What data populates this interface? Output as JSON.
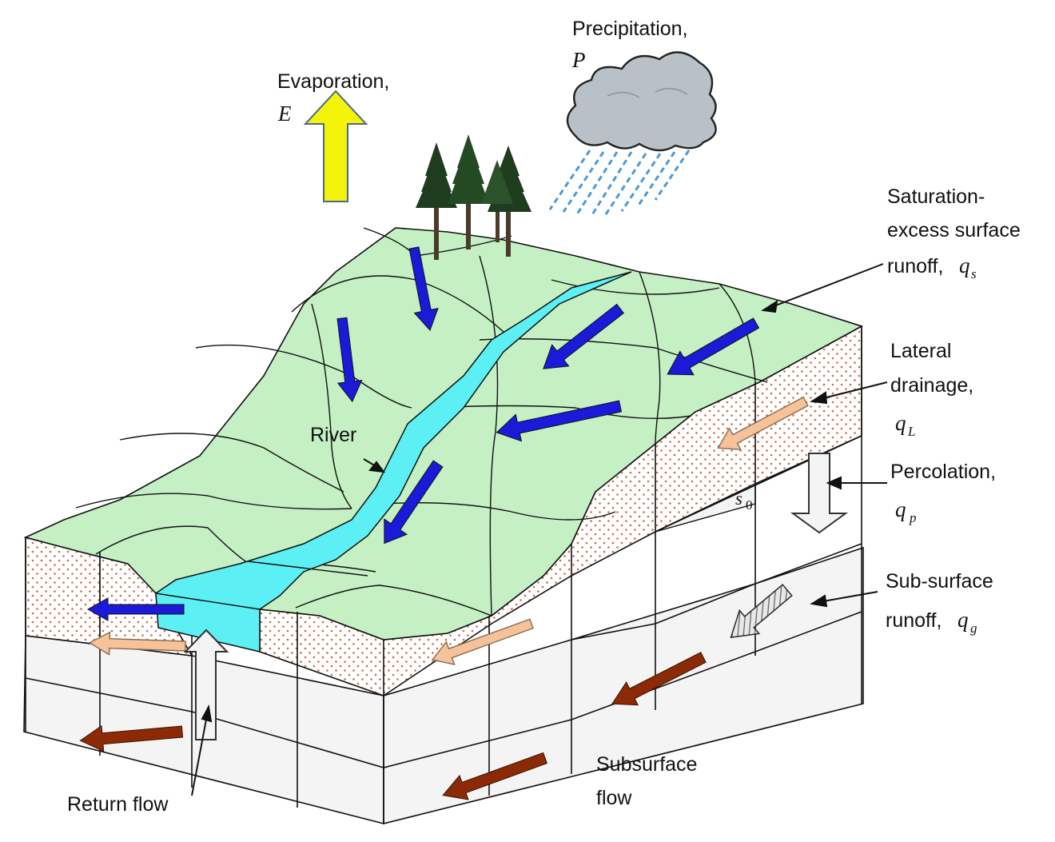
{
  "labels": {
    "evaporation": {
      "text": "Evaporation,",
      "symbol": "E"
    },
    "precipitation": {
      "text": "Precipitation,",
      "symbol": "P"
    },
    "saturation": {
      "line1": "Saturation-",
      "line2": "excess surface",
      "line3": "runoff,",
      "symbol": "q",
      "sub": "s"
    },
    "lateral": {
      "line1": "Lateral",
      "line2": "drainage,",
      "symbol": "q",
      "sub": "L"
    },
    "percolation": {
      "line1": "Percolation,",
      "symbol": "q",
      "sub": "p"
    },
    "subsurface_runoff": {
      "line1": "Sub-surface",
      "line2": "runoff,",
      "symbol": "q",
      "sub": "g"
    },
    "river": "River",
    "slope": {
      "symbol": "s",
      "sub": "0"
    },
    "return_flow": "Return flow",
    "subsurface_flow": {
      "line1": "Subsurface",
      "line2": "flow"
    }
  },
  "colors": {
    "land_surface": "#c4f0c4",
    "river": "#5cf0f4",
    "soil": "#ffffff",
    "soil_dots": "#c2704c",
    "bedrock": "#f4f4f4",
    "evaporation_arrow": "#f4f40a",
    "surface_runoff_arrow": "#1a1ad8",
    "lateral_drainage_arrow": "#f6c29a",
    "subsurface_flow_arrow": "#8c2a06",
    "percolation_arrow": "#f4f4f4",
    "cloud": "#b8c0c8",
    "rain": "#4a9ad8"
  }
}
